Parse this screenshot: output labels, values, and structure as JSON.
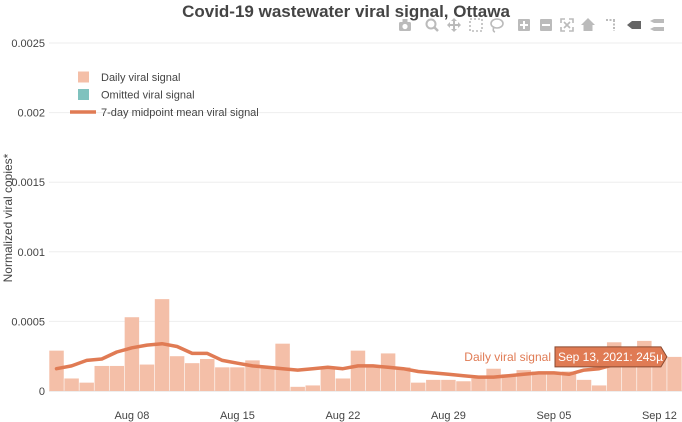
{
  "title": "Covid-19 wastewater viral signal, Ottawa",
  "modebar": {
    "buttons": [
      "camera-icon",
      "zoom-icon",
      "pan-icon",
      "box-select-icon",
      "lasso-icon",
      "zoom-in-icon",
      "zoom-out-icon",
      "autoscale-icon",
      "reset-axes-icon",
      "spike-lines-icon",
      "hover-closest-icon",
      "hover-compare-icon"
    ]
  },
  "chart_data": {
    "type": "bar",
    "title": "Covid-19 wastewater viral signal, Ottawa",
    "ylabel": "Normalized viral copies*",
    "xlabel": "",
    "ylim": [
      0,
      0.0025
    ],
    "x_range": [
      "2021-08-03",
      "2021-09-13"
    ],
    "y_ticks": [
      {
        "value": 0,
        "label": "0"
      },
      {
        "value": 0.0005,
        "label": "0.0005"
      },
      {
        "value": 0.001,
        "label": "0.001"
      },
      {
        "value": 0.0015,
        "label": "0.0015"
      },
      {
        "value": 0.002,
        "label": "0.002"
      },
      {
        "value": 0.0025,
        "label": "0.0025"
      }
    ],
    "x_ticks": [
      {
        "date": "2021-08-08",
        "label": "Aug 08"
      },
      {
        "date": "2021-08-15",
        "label": "Aug 15"
      },
      {
        "date": "2021-08-22",
        "label": "Aug 22"
      },
      {
        "date": "2021-08-29",
        "label": "Aug 29"
      },
      {
        "date": "2021-09-05",
        "label": "Sep 05"
      },
      {
        "date": "2021-09-12",
        "label": "Sep 12"
      }
    ],
    "grid": true,
    "legend": {
      "placement": "top-left",
      "entries": [
        {
          "name": "Daily viral signal",
          "kind": "bar",
          "color": "#f4bfa8"
        },
        {
          "name": "Omitted viral signal",
          "kind": "bar",
          "color": "#7fc2be"
        },
        {
          "name": "7-day midpoint mean viral signal",
          "kind": "line",
          "color": "#e07b54"
        }
      ]
    },
    "series": [
      {
        "name": "Daily viral signal",
        "type": "bar",
        "color": "#f4bfa8",
        "x": [
          "2021-08-03",
          "2021-08-04",
          "2021-08-05",
          "2021-08-06",
          "2021-08-07",
          "2021-08-08",
          "2021-08-09",
          "2021-08-10",
          "2021-08-11",
          "2021-08-12",
          "2021-08-13",
          "2021-08-14",
          "2021-08-15",
          "2021-08-16",
          "2021-08-17",
          "2021-08-18",
          "2021-08-19",
          "2021-08-20",
          "2021-08-21",
          "2021-08-22",
          "2021-08-23",
          "2021-08-24",
          "2021-08-25",
          "2021-08-26",
          "2021-08-27",
          "2021-08-28",
          "2021-08-29",
          "2021-08-30",
          "2021-08-31",
          "2021-09-01",
          "2021-09-02",
          "2021-09-03",
          "2021-09-04",
          "2021-09-05",
          "2021-09-06",
          "2021-09-07",
          "2021-09-08",
          "2021-09-09",
          "2021-09-10",
          "2021-09-11",
          "2021-09-12",
          "2021-09-13"
        ],
        "values": [
          0.00029,
          9e-05,
          6e-05,
          0.00018,
          0.00018,
          0.00053,
          0.00019,
          0.00066,
          0.00025,
          0.0002,
          0.00023,
          0.00017,
          0.00017,
          0.00022,
          0.00018,
          0.00034,
          3e-05,
          4e-05,
          0.00017,
          9e-05,
          0.00029,
          0.00018,
          0.00027,
          0.00017,
          6e-05,
          8e-05,
          8e-05,
          7e-05,
          9e-05,
          0.00016,
          0.00012,
          0.00015,
          0.00014,
          0.00013,
          0.00014,
          8e-05,
          4e-05,
          0.00035,
          0.00026,
          0.00036,
          0.00024,
          0.000245
        ]
      },
      {
        "name": "7-day midpoint mean viral signal",
        "type": "line",
        "color": "#e07b54",
        "x": [
          "2021-08-03",
          "2021-08-04",
          "2021-08-05",
          "2021-08-06",
          "2021-08-07",
          "2021-08-08",
          "2021-08-09",
          "2021-08-10",
          "2021-08-11",
          "2021-08-12",
          "2021-08-13",
          "2021-08-14",
          "2021-08-15",
          "2021-08-16",
          "2021-08-17",
          "2021-08-18",
          "2021-08-19",
          "2021-08-20",
          "2021-08-21",
          "2021-08-22",
          "2021-08-23",
          "2021-08-24",
          "2021-08-25",
          "2021-08-26",
          "2021-08-27",
          "2021-08-28",
          "2021-08-29",
          "2021-08-30",
          "2021-08-31",
          "2021-09-01",
          "2021-09-02",
          "2021-09-03",
          "2021-09-04",
          "2021-09-05",
          "2021-09-06",
          "2021-09-07",
          "2021-09-08",
          "2021-09-09",
          "2021-09-10"
        ],
        "values": [
          0.00016,
          0.00018,
          0.00022,
          0.00023,
          0.00028,
          0.00031,
          0.00033,
          0.00034,
          0.00032,
          0.00027,
          0.00027,
          0.00022,
          0.0002,
          0.00018,
          0.00017,
          0.00016,
          0.00015,
          0.00016,
          0.00017,
          0.00016,
          0.00018,
          0.00018,
          0.00017,
          0.00016,
          0.00014,
          0.00013,
          0.00012,
          0.00011,
          0.0001,
          0.0001,
          0.00011,
          0.00012,
          0.00013,
          0.00013,
          0.00012,
          0.00015,
          0.00016,
          0.00019,
          0.00021
        ]
      }
    ],
    "annotations": [
      {
        "text": "Daily viral signal",
        "role": "hover-series-label"
      },
      {
        "text": "Sep 13, 2021: 245µ",
        "role": "hover-tooltip"
      }
    ]
  }
}
